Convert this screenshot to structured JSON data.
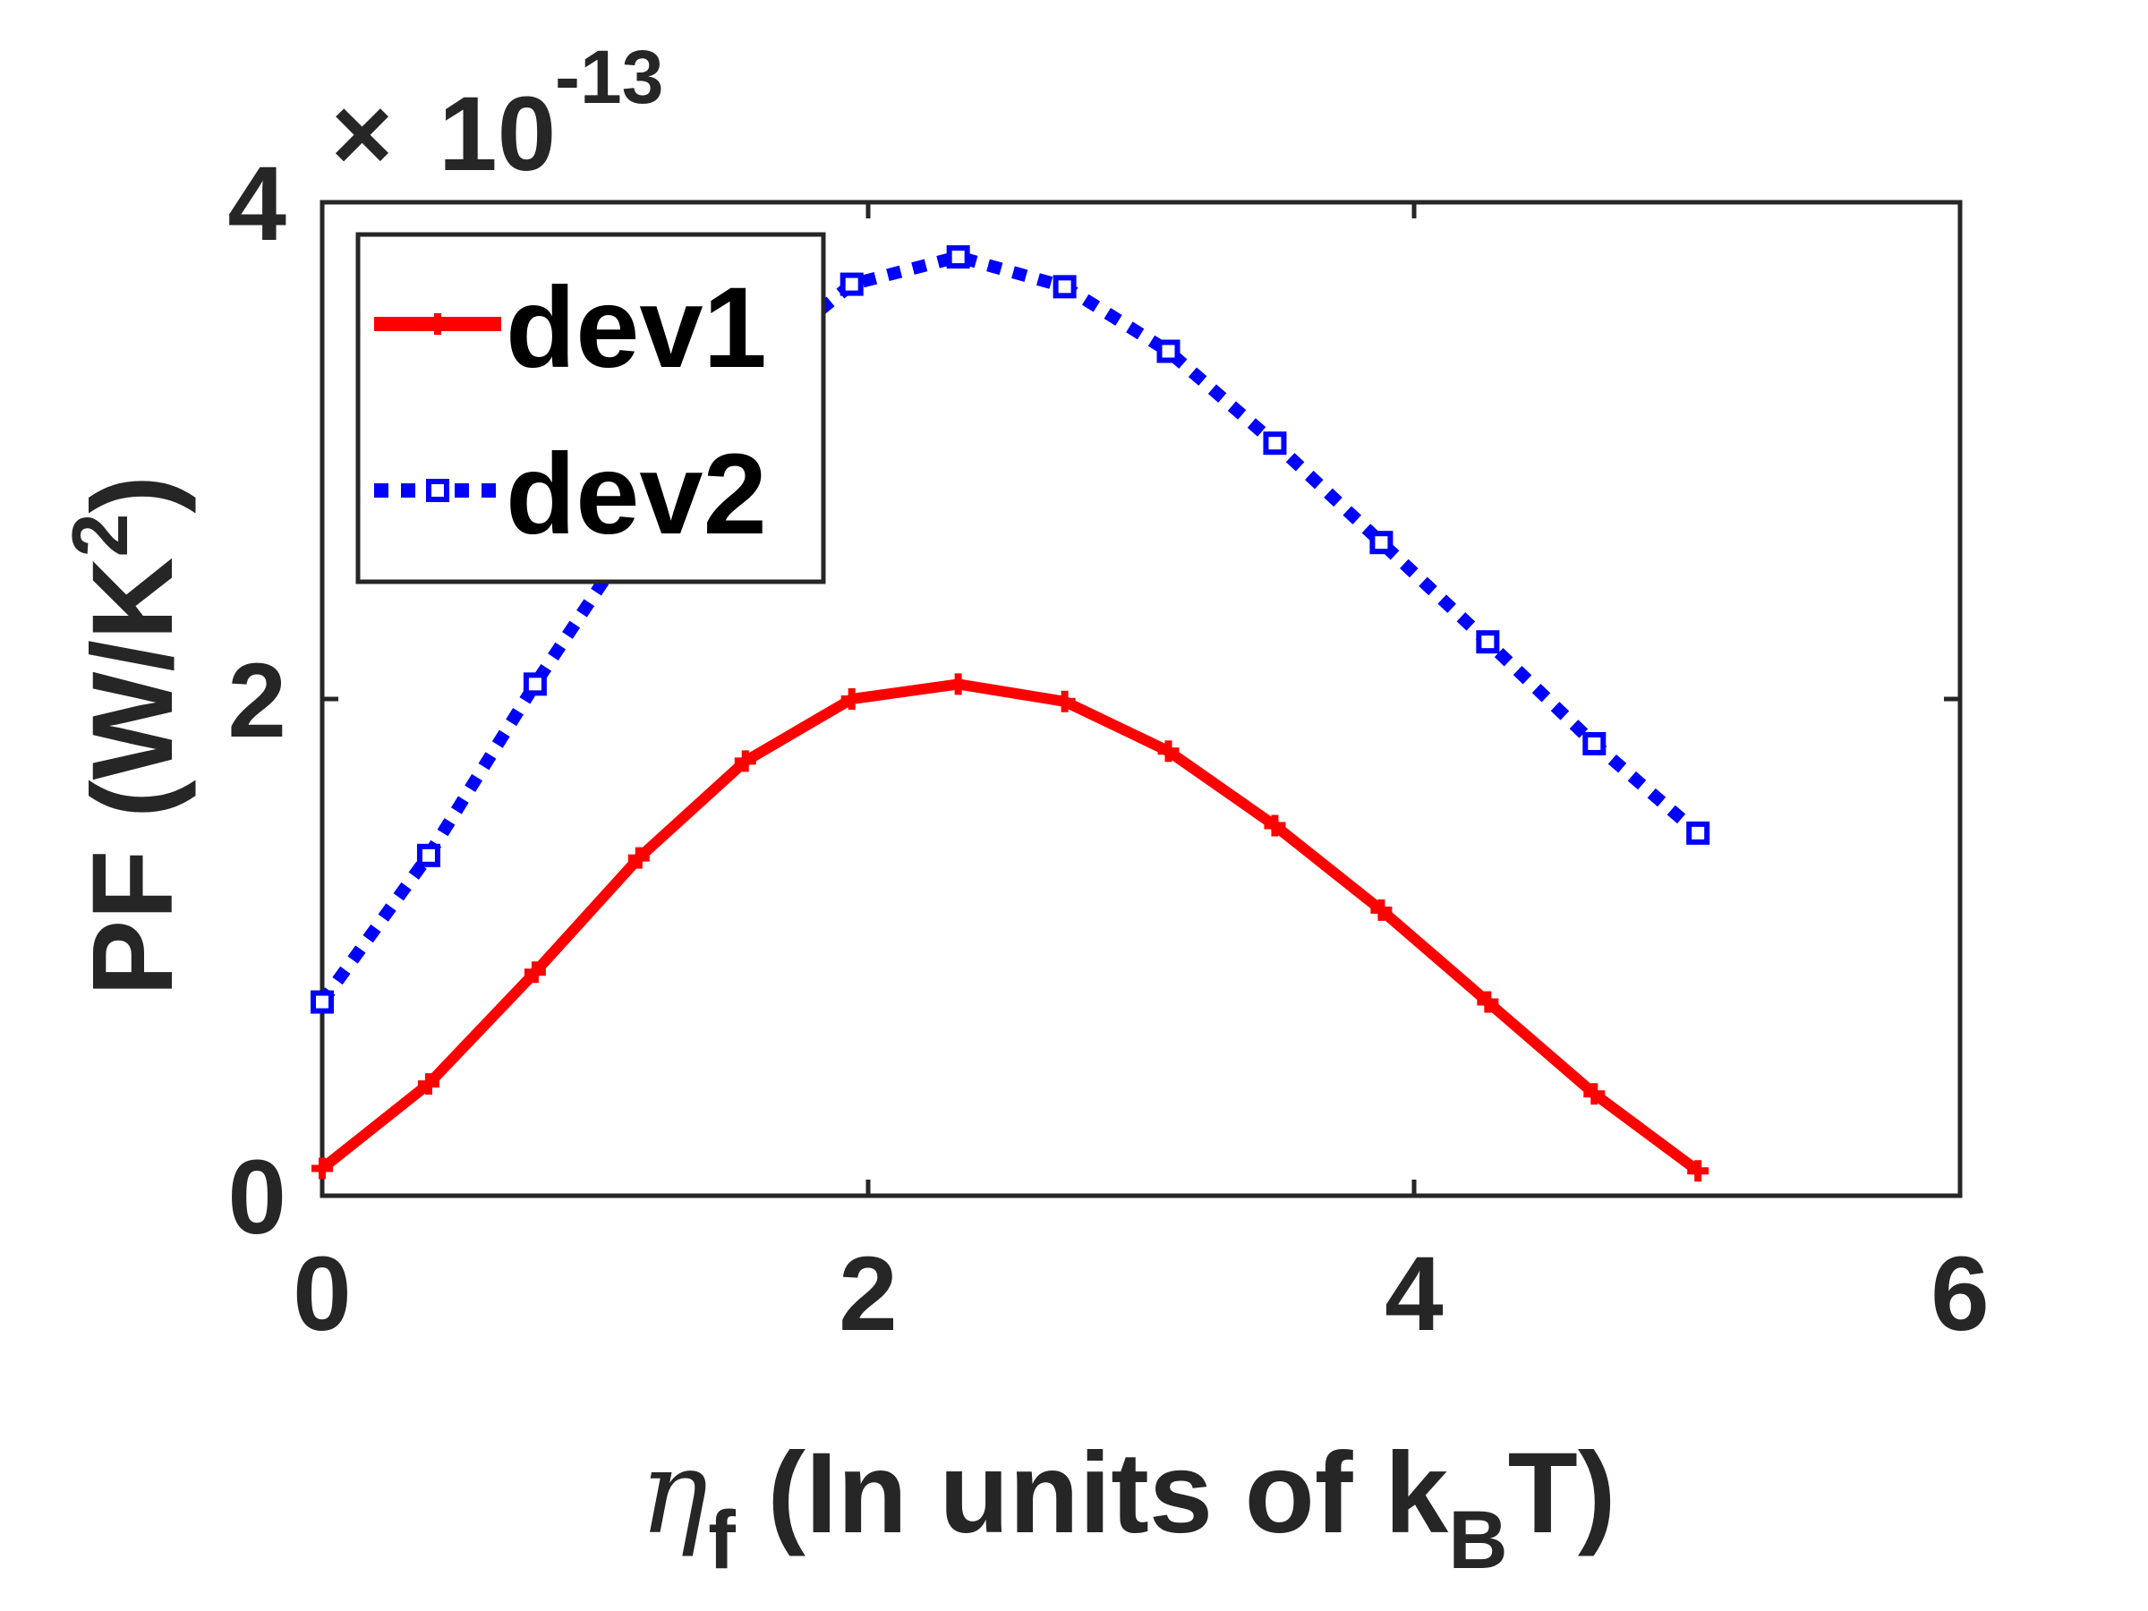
{
  "chart_data": {
    "type": "line",
    "xlabel": {
      "symbol": "η",
      "symbol_sub": "f",
      "text": " (In units of k",
      "text_sub": "B",
      "text_end": "T)"
    },
    "ylabel": {
      "text": "PF (W/K",
      "sup": "2",
      "end": ")"
    },
    "y_exponent": {
      "times": "×",
      "base": "10",
      "power": "-13"
    },
    "xlim": [
      0,
      6
    ],
    "ylim": [
      0,
      4
    ],
    "xticks": [
      0,
      2,
      4,
      6
    ],
    "xtick_labels": [
      "0",
      "2",
      "4",
      "6"
    ],
    "yticks": [
      0,
      2,
      4
    ],
    "ytick_labels": [
      "0",
      "2",
      "4"
    ],
    "grid": false,
    "legend_position": "top-left",
    "x": [
      0,
      0.39,
      0.78,
      1.16,
      1.55,
      1.94,
      2.33,
      2.72,
      3.1,
      3.49,
      3.88,
      4.27,
      4.66,
      5.04
    ],
    "series": [
      {
        "name": "dev1",
        "color": "#ff0000",
        "style": "solid",
        "marker": "plus",
        "values": [
          0.11,
          0.45,
          0.9,
          1.36,
          1.75,
          2.0,
          2.06,
          1.99,
          1.79,
          1.49,
          1.15,
          0.78,
          0.41,
          0.1
        ]
      },
      {
        "name": "dev2",
        "color": "#0000ff",
        "style": "dotted",
        "marker": "square",
        "values": [
          0.78,
          1.37,
          2.06,
          2.69,
          3.32,
          3.67,
          3.78,
          3.66,
          3.4,
          3.03,
          2.63,
          2.23,
          1.82,
          1.46
        ]
      }
    ]
  }
}
